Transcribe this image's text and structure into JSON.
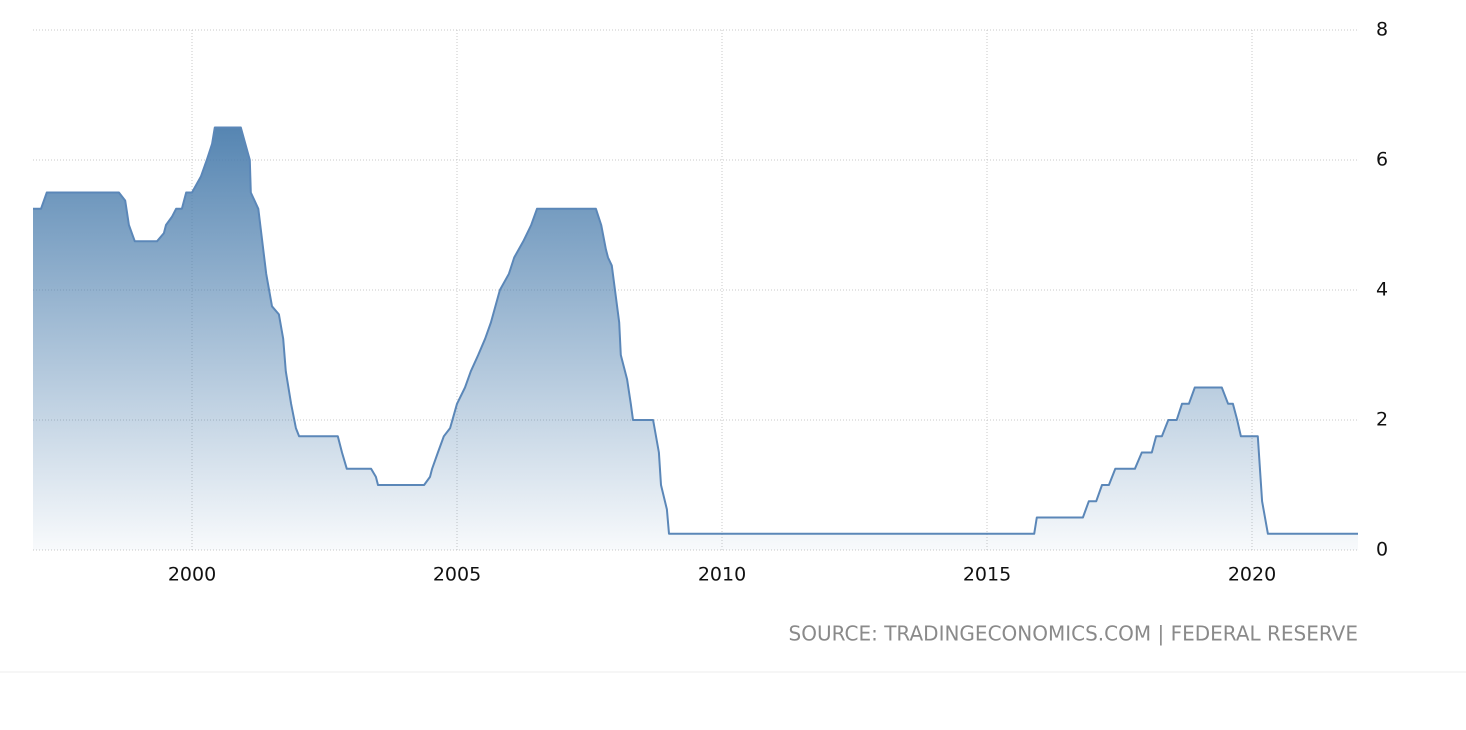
{
  "chart_data": {
    "type": "area",
    "source": "SOURCE: TRADINGECONOMICS.COM | FEDERAL RESERVE",
    "x": [
      1997.0,
      1997.15,
      1997.26,
      1998.62,
      1998.74,
      1998.81,
      1998.92,
      1999.34,
      1999.47,
      1999.51,
      1999.62,
      1999.7,
      1999.81,
      1999.89,
      2000.0,
      2000.17,
      2000.28,
      2000.38,
      2000.43,
      2000.92,
      2001.09,
      2001.11,
      2001.25,
      2001.4,
      2001.51,
      2001.64,
      2001.72,
      2001.77,
      2001.87,
      2001.96,
      2002.02,
      2002.75,
      2002.83,
      2002.92,
      2003.38,
      2003.47,
      2003.51,
      2004.38,
      2004.49,
      2004.53,
      2004.64,
      2004.75,
      2004.87,
      2005.0,
      2005.15,
      2005.26,
      2005.4,
      2005.53,
      2005.64,
      2005.81,
      2005.98,
      2006.08,
      2006.25,
      2006.4,
      2006.51,
      2007.62,
      2007.72,
      2007.81,
      2007.85,
      2007.92,
      2008.06,
      2008.09,
      2008.21,
      2008.28,
      2008.32,
      2008.7,
      2008.81,
      2008.85,
      2008.96,
      2009.0,
      2015.89,
      2015.94,
      2016.81,
      2016.92,
      2017.06,
      2017.17,
      2017.3,
      2017.42,
      2017.79,
      2017.92,
      2018.11,
      2018.19,
      2018.3,
      2018.42,
      2018.58,
      2018.68,
      2018.81,
      2018.92,
      2019.43,
      2019.55,
      2019.64,
      2019.72,
      2019.79,
      2020.11,
      2020.19,
      2020.3,
      2022.0
    ],
    "values": [
      5.25,
      5.25,
      5.5,
      5.5,
      5.375,
      5.0,
      4.75,
      4.75,
      4.875,
      5.0,
      5.125,
      5.25,
      5.25,
      5.5,
      5.5,
      5.75,
      6.0,
      6.25,
      6.5,
      6.5,
      6.0,
      5.5,
      5.25,
      4.25,
      3.75,
      3.625,
      3.25,
      2.75,
      2.25,
      1.875,
      1.75,
      1.75,
      1.5,
      1.25,
      1.25,
      1.125,
      1.0,
      1.0,
      1.125,
      1.25,
      1.5,
      1.75,
      1.875,
      2.25,
      2.5,
      2.75,
      3.0,
      3.25,
      3.5,
      4.0,
      4.25,
      4.5,
      4.75,
      5.0,
      5.25,
      5.25,
      5.0,
      4.625,
      4.5,
      4.375,
      3.5,
      3.0,
      2.625,
      2.25,
      2.0,
      2.0,
      1.5,
      1.0,
      0.625,
      0.25,
      0.25,
      0.5,
      0.5,
      0.75,
      0.75,
      1.0,
      1.0,
      1.25,
      1.25,
      1.5,
      1.5,
      1.75,
      1.75,
      2.0,
      2.0,
      2.25,
      2.25,
      2.5,
      2.5,
      2.25,
      2.25,
      2.0,
      1.75,
      1.75,
      0.75,
      0.25,
      0.25
    ],
    "color": "#5b87b8",
    "xlim": [
      1997,
      2022
    ],
    "xticks": [
      2000,
      2005,
      2010,
      2015,
      2020
    ],
    "ylim": [
      0,
      8
    ],
    "yticks": [
      0,
      2,
      4,
      6,
      8
    ],
    "grid": true
  }
}
